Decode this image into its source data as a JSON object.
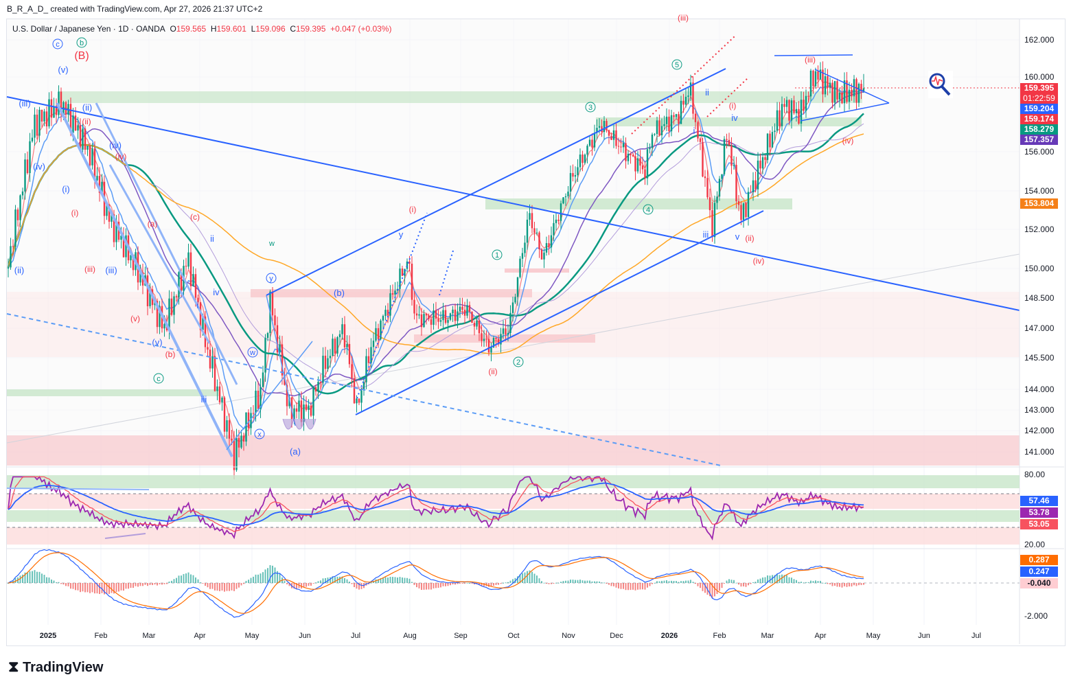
{
  "credit": "B_R_A_D_ created with TradingView.com, Apr 27, 2026 21:37 UTC+2",
  "legend": {
    "symbol": "U.S. Dollar / Japanese Yen · 1D · OANDA",
    "o_label": "O",
    "o": "159.565",
    "h_label": "H",
    "h": "159.601",
    "l_label": "L",
    "l": "159.096",
    "c_label": "C",
    "c": "159.395",
    "change": "+0.047 (+0.03%)"
  },
  "price_tags": [
    {
      "v": "159.395",
      "sub": "01:22:59",
      "color": "#f23645"
    },
    {
      "v": "159.204",
      "color": "#2962ff"
    },
    {
      "v": "159.174",
      "color": "#f23645"
    },
    {
      "v": "158.279",
      "color": "#089981"
    },
    {
      "v": "157.357",
      "color": "#673ab7"
    },
    {
      "v": "153.804",
      "color": "#f57f17"
    }
  ],
  "rsi_tags": [
    {
      "v": "57.46",
      "color": "#2962ff"
    },
    {
      "v": "53.78",
      "color": "#9c27b0"
    },
    {
      "v": "53.05",
      "color": "#f7525f"
    }
  ],
  "macd_tags": [
    {
      "v": "0.287",
      "color": "#ff6d00"
    },
    {
      "v": "0.247",
      "color": "#2962ff"
    },
    {
      "v": "-0.040",
      "color": "#ffcdd2",
      "dark": true
    }
  ],
  "footer": "TradingView",
  "chart_data": {
    "type": "candlestick",
    "title": "U.S. Dollar / Japanese Yen 1D OANDA",
    "price_ticks": [
      "162.000",
      "160.000",
      "156.000",
      "154.000",
      "152.000",
      "150.000",
      "148.500",
      "147.000",
      "145.500",
      "144.000",
      "143.000",
      "142.000",
      "141.000"
    ],
    "rsi_ticks": [
      "80.00",
      "20.00"
    ],
    "macd_ticks": [
      "-2.000"
    ],
    "time_ticks": [
      "2025",
      "Feb",
      "Mar",
      "Apr",
      "May",
      "Jun",
      "Jul",
      "Aug",
      "Sep",
      "Oct",
      "Nov",
      "Dec",
      "2026",
      "Feb",
      "Mar",
      "Apr",
      "May",
      "Jun",
      "Jul"
    ],
    "price_path_day_since_2025_01_01": [
      [
        -24,
        150
      ],
      [
        -8,
        157.5
      ],
      [
        8,
        158.6
      ],
      [
        24,
        156
      ],
      [
        36,
        152.5
      ],
      [
        52,
        150
      ],
      [
        68,
        147
      ],
      [
        82,
        150.5
      ],
      [
        93,
        146
      ],
      [
        109,
        140.8
      ],
      [
        125,
        144
      ],
      [
        130,
        148.5
      ],
      [
        141,
        143
      ],
      [
        153,
        143
      ],
      [
        161,
        145
      ],
      [
        173,
        147
      ],
      [
        181,
        143
      ],
      [
        189,
        146
      ],
      [
        211,
        150.5
      ],
      [
        215,
        147.5
      ],
      [
        233,
        147.5
      ],
      [
        245,
        148
      ],
      [
        258,
        146
      ],
      [
        270,
        147
      ],
      [
        282,
        152.8
      ],
      [
        290,
        150.5
      ],
      [
        306,
        154.5
      ],
      [
        324,
        157.5
      ],
      [
        338,
        156
      ],
      [
        350,
        155
      ],
      [
        354,
        157
      ],
      [
        370,
        158
      ],
      [
        376,
        159.5
      ],
      [
        386,
        154
      ],
      [
        389,
        152
      ],
      [
        398,
        157
      ],
      [
        406,
        152.5
      ],
      [
        414,
        154.5
      ],
      [
        431,
        158.5
      ],
      [
        441,
        158
      ],
      [
        449,
        160.2
      ],
      [
        463,
        159
      ],
      [
        478,
        159.4
      ]
    ],
    "wave_labels": {
      "red": [
        "(B)",
        "(iii)",
        "(iii)",
        "(iv)",
        "(i)",
        "(ii)",
        "(iv)",
        "(i)",
        "(ii)",
        "(i)",
        "(ii)",
        "(iv)",
        "(a)",
        "(c)",
        "(v)",
        "(b)",
        "(iii)"
      ],
      "blue": [
        "(v)",
        "(iii)",
        "(ii)",
        "(iv)",
        "(iv)",
        "(i)",
        "(ii)",
        "(iii)",
        "(v)",
        "ii",
        "i",
        "iv",
        "iii",
        "(a)",
        "(b)",
        "y",
        "ii",
        "iv",
        "i",
        "iii",
        "v"
      ],
      "green": [
        "b",
        "c",
        "w",
        "1",
        "2",
        "3",
        "4",
        "5"
      ],
      "blue_circled": [
        "c",
        "y",
        "w",
        "x"
      ]
    }
  }
}
